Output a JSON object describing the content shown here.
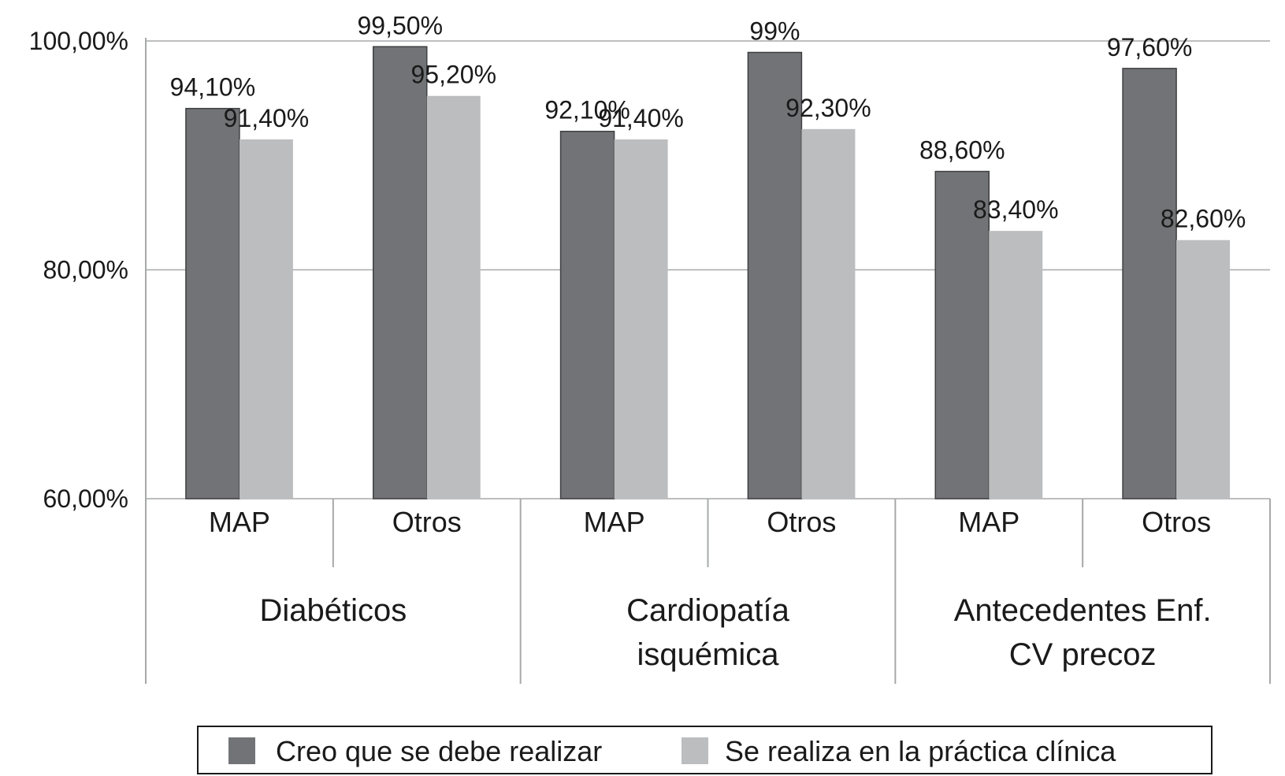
{
  "chart_data": {
    "type": "bar",
    "title": "",
    "xlabel": "",
    "ylabel": "",
    "ylim": [
      60,
      100
    ],
    "y_ticks": [
      {
        "value": 60,
        "label": "60,00%"
      },
      {
        "value": 80,
        "label": "80,00%"
      },
      {
        "value": 100,
        "label": "100,00%"
      }
    ],
    "grid": true,
    "legend_position": "bottom",
    "groups": [
      {
        "label_lines": [
          "Diabéticos"
        ],
        "subcategories": [
          "MAP",
          "Otros"
        ]
      },
      {
        "label_lines": [
          "Cardiopatía",
          "isquémica"
        ],
        "subcategories": [
          "MAP",
          "Otros"
        ]
      },
      {
        "label_lines": [
          "Antecedentes Enf.",
          "CV precoz"
        ],
        "subcategories": [
          "MAP",
          "Otros"
        ]
      }
    ],
    "series": [
      {
        "name": "Creo que se debe realizar",
        "color": "#727376",
        "values": [
          94.1,
          99.5,
          92.1,
          99.0,
          88.6,
          97.6
        ],
        "labels": [
          "94,10%",
          "99,50%",
          "92,10%",
          "99%",
          "88,60%",
          "97,60%"
        ]
      },
      {
        "name": "Se realiza en la práctica clínica",
        "color": "#bcbdbf",
        "values": [
          91.4,
          95.2,
          91.4,
          92.3,
          83.4,
          82.6
        ],
        "labels": [
          "91,40%",
          "95,20%",
          "91,40%",
          "92,30%",
          "83,40%",
          "82,60%"
        ]
      }
    ]
  }
}
